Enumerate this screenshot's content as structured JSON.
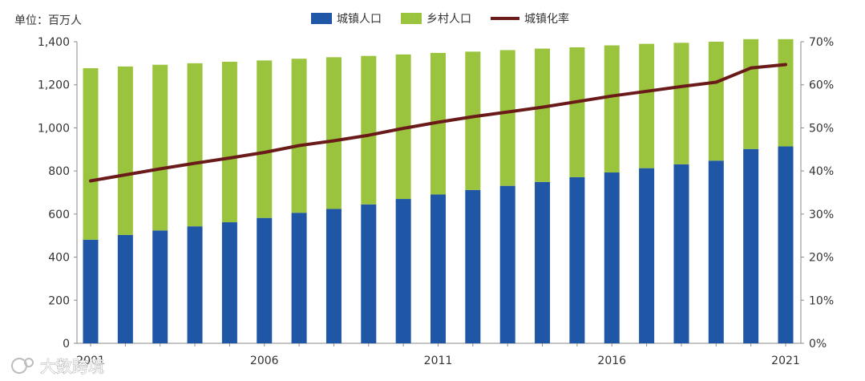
{
  "chart_data": {
    "type": "bar+line",
    "unit_label": "单位：百万人",
    "x": [
      2001,
      2002,
      2003,
      2004,
      2005,
      2006,
      2007,
      2008,
      2009,
      2010,
      2011,
      2012,
      2013,
      2014,
      2015,
      2016,
      2017,
      2018,
      2019,
      2020,
      2021
    ],
    "x_tick_labels": [
      "2001",
      "2006",
      "2011",
      "2016",
      "2021"
    ],
    "x_tick_years": [
      2001,
      2006,
      2011,
      2016,
      2021
    ],
    "series": [
      {
        "name": "城镇人口",
        "kind": "stacked-bar",
        "axis": "left",
        "color": "#1f56a5",
        "values": [
          481,
          503,
          524,
          543,
          562,
          582,
          606,
          624,
          645,
          670,
          691,
          712,
          731,
          749,
          771,
          793,
          813,
          831,
          848,
          902,
          914
        ]
      },
      {
        "name": "乡村人口",
        "kind": "stacked-bar",
        "axis": "left",
        "color": "#9ac43d",
        "values": [
          796,
          782,
          769,
          757,
          745,
          731,
          715,
          704,
          689,
          671,
          657,
          642,
          630,
          619,
          603,
          590,
          577,
          564,
          552,
          510,
          498
        ]
      },
      {
        "name": "城镇化率",
        "kind": "line",
        "axis": "right",
        "color": "#6b1a1a",
        "values": [
          37.7,
          39.1,
          40.5,
          41.8,
          43.0,
          44.3,
          45.9,
          47.0,
          48.3,
          49.9,
          51.3,
          52.6,
          53.7,
          54.8,
          56.1,
          57.4,
          58.5,
          59.6,
          60.6,
          63.9,
          64.7
        ]
      }
    ],
    "y_left": {
      "min": 0,
      "max": 1400,
      "step": 200,
      "tick_labels": [
        "0",
        "200",
        "400",
        "600",
        "800",
        "1,000",
        "1,200",
        "1,400"
      ]
    },
    "y_right": {
      "min": 0,
      "max": 70,
      "step": 10,
      "tick_labels": [
        "0%",
        "10%",
        "20%",
        "30%",
        "40%",
        "50%",
        "60%",
        "70%"
      ]
    },
    "legend": {
      "position": "top-center",
      "labels": [
        "城镇人口",
        "乡村人口",
        "城镇化率"
      ]
    },
    "grid": false
  },
  "watermark": {
    "text": "大数跨境"
  }
}
